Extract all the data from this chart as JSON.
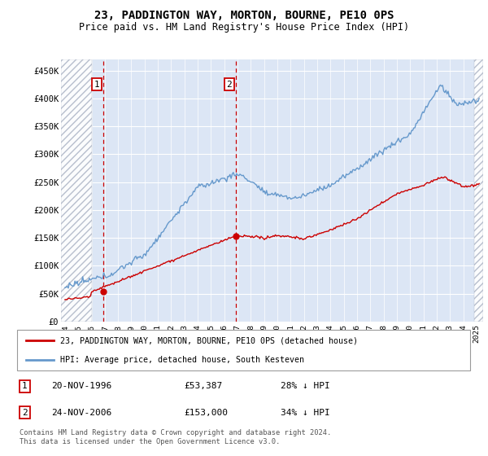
{
  "title": "23, PADDINGTON WAY, MORTON, BOURNE, PE10 0PS",
  "subtitle": "Price paid vs. HM Land Registry's House Price Index (HPI)",
  "ylim": [
    0,
    470000
  ],
  "sale1_x": 1996.88,
  "sale1_price": 53387,
  "sale2_x": 2006.88,
  "sale2_price": 153000,
  "legend_line1": "23, PADDINGTON WAY, MORTON, BOURNE, PE10 0PS (detached house)",
  "legend_line2": "HPI: Average price, detached house, South Kesteven",
  "footer": "Contains HM Land Registry data © Crown copyright and database right 2024.\nThis data is licensed under the Open Government Licence v3.0.",
  "table_entries": [
    [
      "1",
      "20-NOV-1996",
      "£53,387",
      "28% ↓ HPI"
    ],
    [
      "2",
      "24-NOV-2006",
      "£153,000",
      "34% ↓ HPI"
    ]
  ],
  "hpi_color": "#6699cc",
  "price_color": "#cc0000",
  "vline_color": "#cc0000",
  "bg_color": "#dce6f5",
  "hatch_color": "#b0b8c8",
  "grid_color": "#ffffff",
  "xmin": 1993.7,
  "xmax": 2025.5,
  "hatch_left_end": 1996.0,
  "hatch_right_start": 2024.8
}
